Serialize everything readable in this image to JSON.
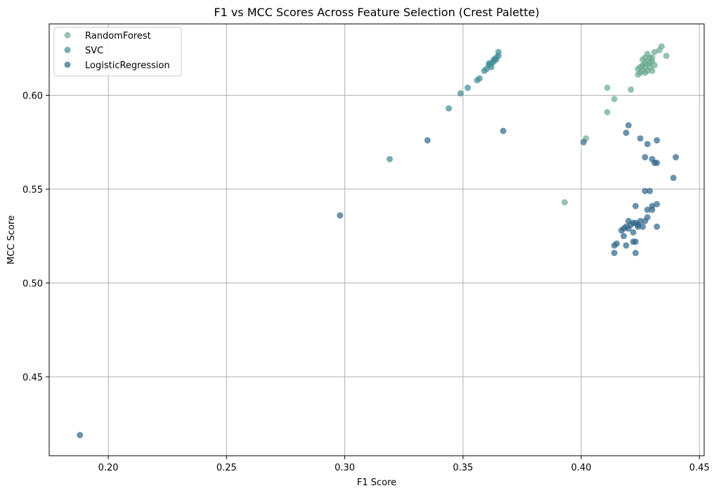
{
  "chart_data": {
    "type": "scatter",
    "title": "F1 vs MCC Scores Across Feature Selection (Crest Palette)",
    "xlabel": "F1 Score",
    "ylabel": "MCC Score",
    "xlim": [
      0.175,
      0.452
    ],
    "ylim": [
      0.408,
      0.638
    ],
    "xticks": [
      0.2,
      0.25,
      0.3,
      0.35,
      0.4,
      0.45
    ],
    "xtick_labels": [
      "0.20",
      "0.25",
      "0.30",
      "0.35",
      "0.40",
      "0.45"
    ],
    "yticks": [
      0.45,
      0.5,
      0.55,
      0.6
    ],
    "ytick_labels": [
      "0.45",
      "0.50",
      "0.55",
      "0.60"
    ],
    "grid": true,
    "legend_position": "top-left",
    "series": [
      {
        "name": "RandomForest",
        "color": "#6aaa8f",
        "points": [
          [
            0.434,
            0.626
          ],
          [
            0.433,
            0.624
          ],
          [
            0.431,
            0.623
          ],
          [
            0.436,
            0.621
          ],
          [
            0.428,
            0.622
          ],
          [
            0.429,
            0.62
          ],
          [
            0.427,
            0.62
          ],
          [
            0.43,
            0.62
          ],
          [
            0.426,
            0.619
          ],
          [
            0.428,
            0.618
          ],
          [
            0.43,
            0.618
          ],
          [
            0.427,
            0.617
          ],
          [
            0.429,
            0.617
          ],
          [
            0.426,
            0.616
          ],
          [
            0.431,
            0.616
          ],
          [
            0.425,
            0.615
          ],
          [
            0.427,
            0.615
          ],
          [
            0.429,
            0.615
          ],
          [
            0.424,
            0.614
          ],
          [
            0.426,
            0.613
          ],
          [
            0.428,
            0.613
          ],
          [
            0.43,
            0.613
          ],
          [
            0.425,
            0.612
          ],
          [
            0.427,
            0.612
          ],
          [
            0.424,
            0.611
          ],
          [
            0.411,
            0.604
          ],
          [
            0.421,
            0.603
          ],
          [
            0.414,
            0.598
          ],
          [
            0.411,
            0.591
          ],
          [
            0.402,
            0.577
          ],
          [
            0.393,
            0.543
          ]
        ]
      },
      {
        "name": "SVC",
        "color": "#3e8a95",
        "points": [
          [
            0.365,
            0.623
          ],
          [
            0.365,
            0.621
          ],
          [
            0.364,
            0.62
          ],
          [
            0.364,
            0.619
          ],
          [
            0.363,
            0.619
          ],
          [
            0.363,
            0.618
          ],
          [
            0.362,
            0.617
          ],
          [
            0.361,
            0.617
          ],
          [
            0.361,
            0.616
          ],
          [
            0.362,
            0.615
          ],
          [
            0.36,
            0.614
          ],
          [
            0.359,
            0.613
          ],
          [
            0.357,
            0.609
          ],
          [
            0.356,
            0.608
          ],
          [
            0.352,
            0.604
          ],
          [
            0.349,
            0.601
          ],
          [
            0.344,
            0.593
          ],
          [
            0.319,
            0.566
          ]
        ]
      },
      {
        "name": "LogisticRegression",
        "color": "#2d6489",
        "points": [
          [
            0.367,
            0.581
          ],
          [
            0.335,
            0.576
          ],
          [
            0.298,
            0.536
          ],
          [
            0.188,
            0.419
          ],
          [
            0.42,
            0.584
          ],
          [
            0.419,
            0.58
          ],
          [
            0.425,
            0.577
          ],
          [
            0.432,
            0.576
          ],
          [
            0.401,
            0.575
          ],
          [
            0.428,
            0.574
          ],
          [
            0.427,
            0.567
          ],
          [
            0.44,
            0.567
          ],
          [
            0.43,
            0.566
          ],
          [
            0.431,
            0.564
          ],
          [
            0.432,
            0.564
          ],
          [
            0.439,
            0.556
          ],
          [
            0.427,
            0.549
          ],
          [
            0.429,
            0.549
          ],
          [
            0.423,
            0.541
          ],
          [
            0.432,
            0.542
          ],
          [
            0.43,
            0.541
          ],
          [
            0.428,
            0.539
          ],
          [
            0.43,
            0.539
          ],
          [
            0.428,
            0.535
          ],
          [
            0.427,
            0.533
          ],
          [
            0.425,
            0.533
          ],
          [
            0.42,
            0.533
          ],
          [
            0.422,
            0.532
          ],
          [
            0.423,
            0.532
          ],
          [
            0.421,
            0.531
          ],
          [
            0.424,
            0.531
          ],
          [
            0.419,
            0.53
          ],
          [
            0.418,
            0.529
          ],
          [
            0.426,
            0.53
          ],
          [
            0.424,
            0.53
          ],
          [
            0.432,
            0.53
          ],
          [
            0.42,
            0.529
          ],
          [
            0.417,
            0.528
          ],
          [
            0.422,
            0.527
          ],
          [
            0.418,
            0.525
          ],
          [
            0.422,
            0.522
          ],
          [
            0.423,
            0.522
          ],
          [
            0.415,
            0.521
          ],
          [
            0.414,
            0.52
          ],
          [
            0.419,
            0.52
          ],
          [
            0.414,
            0.516
          ],
          [
            0.423,
            0.516
          ]
        ]
      }
    ]
  }
}
